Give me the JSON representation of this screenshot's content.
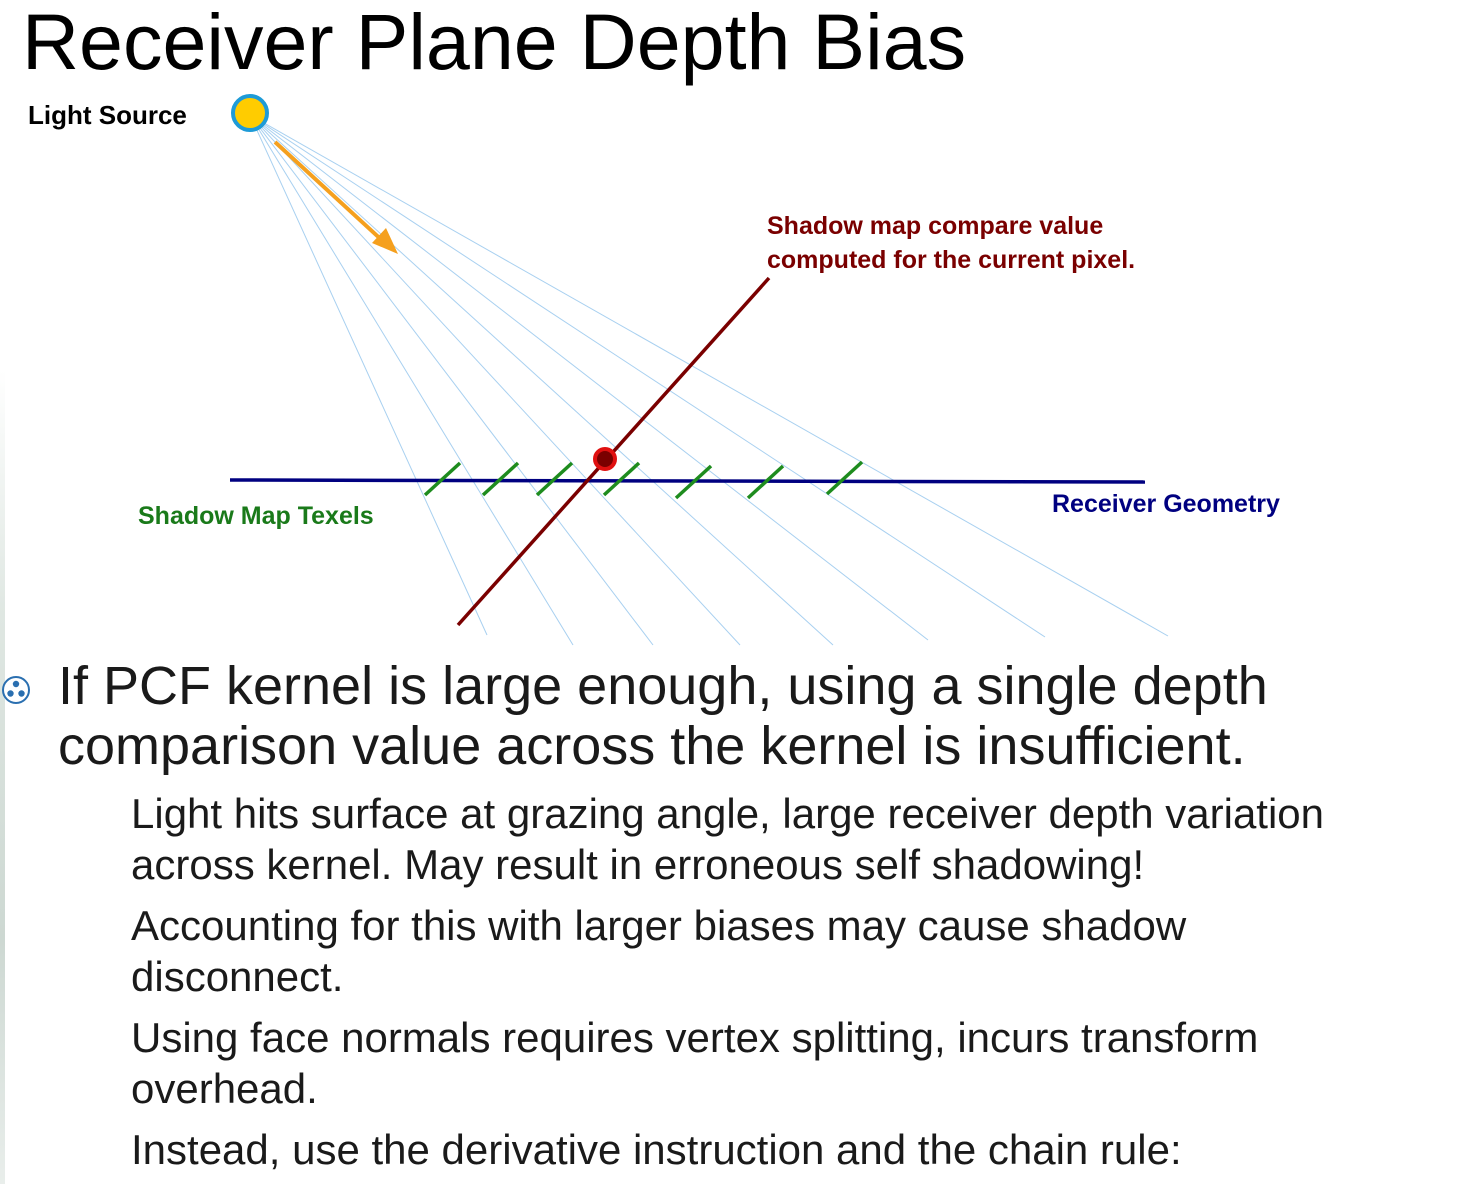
{
  "slide": {
    "title": "Receiver Plane Depth Bias"
  },
  "diagram": {
    "labels": {
      "light_source": "Light Source",
      "compare_value_line1": "Shadow map compare value",
      "compare_value_line2": "computed for the current pixel.",
      "shadow_map_texels": "Shadow Map Texels",
      "receiver_geometry": "Receiver Geometry"
    },
    "colors": {
      "light_fill": "#FFCC00",
      "light_stroke": "#1E9BD7",
      "arrow": "#F5A01E",
      "rays": "#A8D0F0",
      "compare_line": "#7A0000",
      "compare_point": "#E01010",
      "texels": "#1E8C1E",
      "receiver": "#000080",
      "shadow_texels_label": "#1A7A1A",
      "receiver_label": "#000080",
      "compare_label": "#7A0000"
    }
  },
  "bullets": {
    "main": {
      "line1": "If PCF kernel is large enough, using a single depth",
      "line2": "comparison value across the kernel is insufficient."
    },
    "sub": [
      {
        "line1": "Light hits surface at grazing angle, large receiver depth variation",
        "line2": "across kernel.  May result in erroneous self shadowing!"
      },
      {
        "line1": "Accounting for this with larger biases may cause shadow",
        "line2": "disconnect."
      },
      {
        "line1": "Using face normals requires vertex splitting, incurs transform",
        "line2": "overhead."
      },
      {
        "line1": "Instead, use the derivative instruction and the chain rule:"
      }
    ]
  }
}
